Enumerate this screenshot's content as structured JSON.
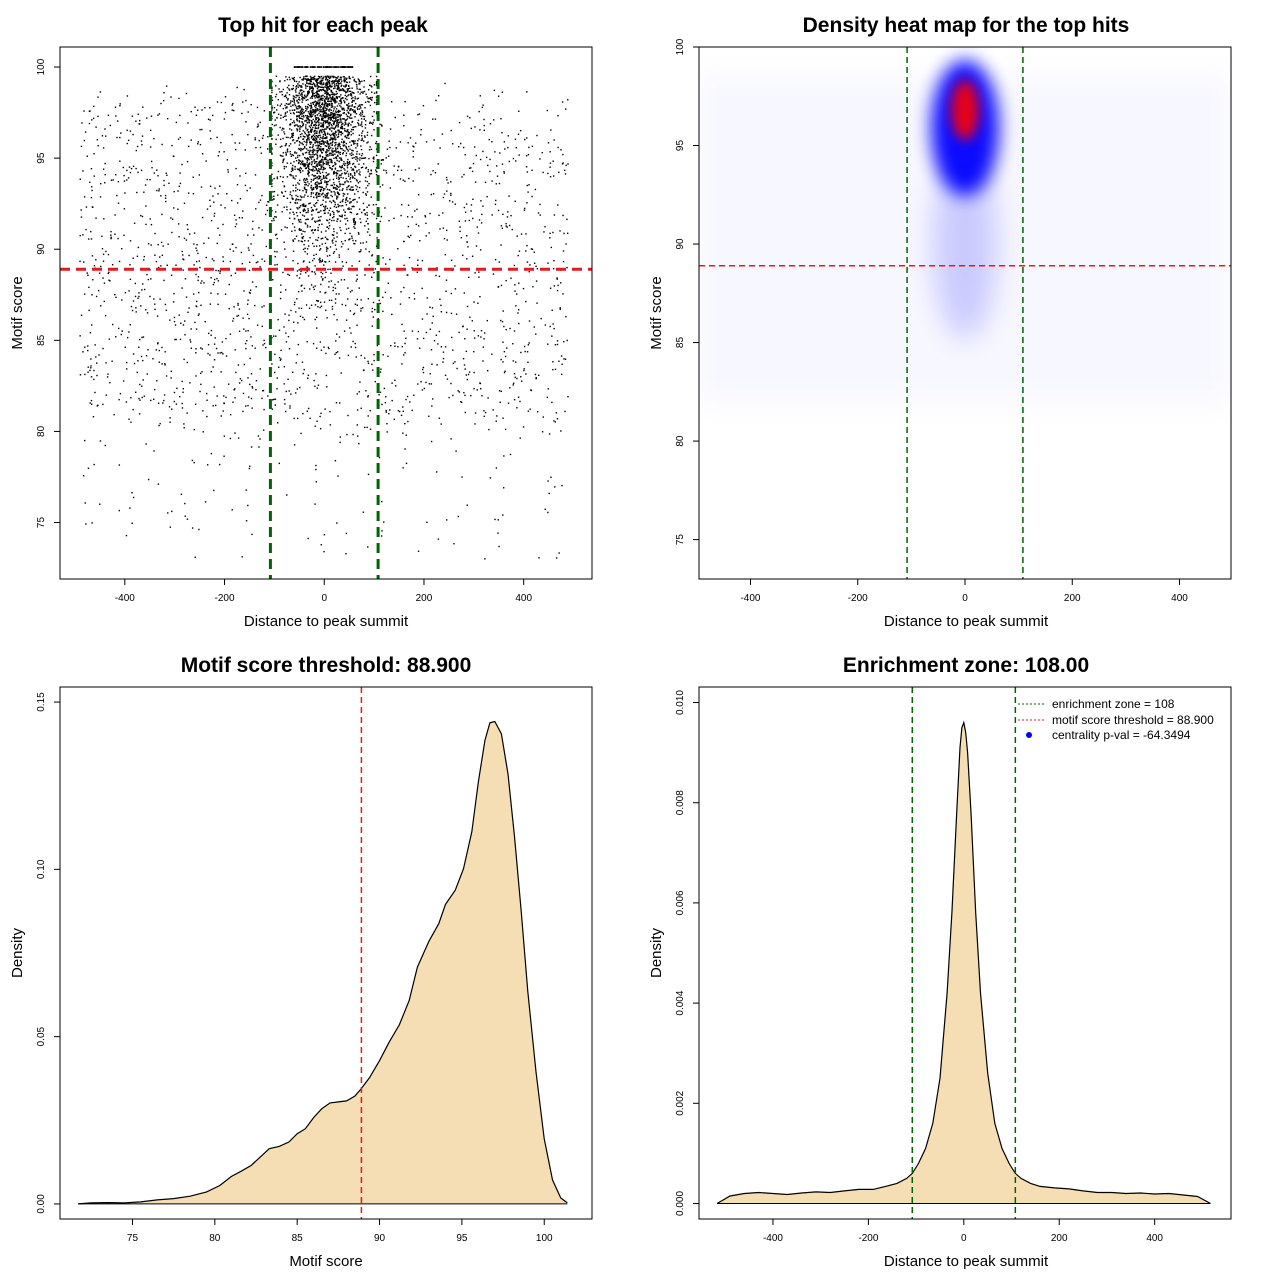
{
  "chart_data": [
    {
      "type": "scatter",
      "title": "Top hit for each peak",
      "xlabel": "Distance to peak summit",
      "ylabel": "Motif score",
      "xlim": [
        -530,
        537
      ],
      "ylim": [
        71.9,
        101.1
      ],
      "x_ticks": [
        -400,
        -200,
        0,
        200,
        400
      ],
      "y_ticks": [
        75,
        80,
        85,
        90,
        95,
        100
      ],
      "hlines": [
        {
          "y": 88.9,
          "color": "#e41a1c",
          "style": "dashed"
        }
      ],
      "vlines": [
        {
          "x": -108,
          "color": "#006400",
          "style": "dashed"
        },
        {
          "x": 108,
          "color": "#006400",
          "style": "dashed"
        }
      ],
      "point_color": "#000000"
    },
    {
      "type": "heatmap",
      "title": "Density heat map for the top hits",
      "xlabel": "Distance to peak summit",
      "ylabel": "Motif score",
      "xlim": [
        -496,
        496
      ],
      "ylim": [
        73,
        100
      ],
      "x_ticks": [
        -400,
        -200,
        0,
        200,
        400
      ],
      "y_ticks": [
        75,
        80,
        85,
        90,
        95,
        100
      ],
      "peak": {
        "x": 0,
        "y": 96.8
      },
      "hlines": [
        {
          "y": 88.9,
          "color": "#e41a1c",
          "style": "dashed"
        }
      ],
      "vlines": [
        {
          "x": -108,
          "color": "#006400",
          "style": "dashed"
        },
        {
          "x": 108,
          "color": "#006400",
          "style": "dashed"
        }
      ],
      "colors": [
        "#ffffff",
        "#0000ff",
        "#ff0000"
      ]
    },
    {
      "type": "area",
      "title": "Motif score threshold: 88.900",
      "xlabel": "Motif score",
      "ylabel": "Density",
      "xlim": [
        70.6,
        102.9
      ],
      "ylim": [
        -0.0045,
        0.1545
      ],
      "x_ticks": [
        75,
        80,
        85,
        90,
        95,
        100
      ],
      "y_ticks": [
        0.0,
        0.05,
        0.1,
        0.15
      ],
      "y_tick_labels": [
        "0.00",
        "0.05",
        "0.10",
        "0.15"
      ],
      "fill": "#f5deb3",
      "vlines": [
        {
          "x": 88.9,
          "color": "#e41a1c",
          "style": "dashed"
        }
      ],
      "x": [
        71.7,
        72.5,
        73.5,
        74.5,
        75.5,
        76.5,
        77.5,
        78.5,
        79.5,
        80.3,
        81,
        81.6,
        82.2,
        82.8,
        83.3,
        83.9,
        84.5,
        85,
        85.5,
        86,
        86.5,
        87,
        87.5,
        88,
        88.5,
        88.9,
        89.4,
        90,
        90.6,
        91.2,
        91.8,
        92.3,
        93,
        93.6,
        94,
        94.6,
        95.1,
        95.6,
        96,
        96.4,
        96.7,
        97,
        97.4,
        97.8,
        98.2,
        98.6,
        99,
        99.5,
        100,
        100.5,
        101,
        101.4
      ],
      "y": [
        0.0,
        0.0003,
        0.0004,
        0.0003,
        0.0006,
        0.0012,
        0.0016,
        0.0023,
        0.0036,
        0.0055,
        0.0082,
        0.0098,
        0.0115,
        0.0142,
        0.0165,
        0.0172,
        0.0185,
        0.021,
        0.0225,
        0.0258,
        0.0285,
        0.0302,
        0.0305,
        0.0308,
        0.0322,
        0.0345,
        0.0378,
        0.0428,
        0.0485,
        0.0535,
        0.0608,
        0.0708,
        0.0785,
        0.0838,
        0.0895,
        0.0938,
        0.1002,
        0.1112,
        0.1262,
        0.1385,
        0.1438,
        0.1442,
        0.1405,
        0.1285,
        0.1095,
        0.0875,
        0.0635,
        0.0395,
        0.0195,
        0.0072,
        0.0018,
        0.0003
      ]
    },
    {
      "type": "area",
      "title": "Enrichment zone: 108.00",
      "xlabel": "Distance to peak summit",
      "ylabel": "Density",
      "xlim": [
        -555,
        560
      ],
      "ylim": [
        -0.00031,
        0.01031
      ],
      "x_ticks": [
        -400,
        -200,
        0,
        200,
        400
      ],
      "y_ticks": [
        0.0,
        0.002,
        0.004,
        0.006,
        0.008,
        0.01
      ],
      "y_tick_labels": [
        "0.000",
        "0.002",
        "0.004",
        "0.006",
        "0.008",
        "0.010"
      ],
      "fill": "#f5deb3",
      "vlines": [
        {
          "x": -108,
          "color": "#006400",
          "style": "dashed"
        },
        {
          "x": 108,
          "color": "#006400",
          "style": "dashed"
        }
      ],
      "x": [
        -517,
        -490,
        -460,
        -430,
        -400,
        -370,
        -340,
        -310,
        -280,
        -250,
        -220,
        -190,
        -160,
        -140,
        -120,
        -108,
        -95,
        -80,
        -65,
        -50,
        -35,
        -25,
        -15,
        -8,
        -4,
        0,
        4,
        8,
        15,
        25,
        35,
        50,
        65,
        80,
        95,
        108,
        120,
        140,
        160,
        190,
        220,
        250,
        280,
        310,
        340,
        370,
        400,
        430,
        460,
        490,
        517
      ],
      "y": [
        0.0,
        0.00015,
        0.0002,
        0.00022,
        0.0002,
        0.00018,
        0.00021,
        0.00023,
        0.00022,
        0.00025,
        0.00028,
        0.00028,
        0.00035,
        0.0004,
        0.0005,
        0.0006,
        0.0008,
        0.0011,
        0.0016,
        0.0025,
        0.0042,
        0.0058,
        0.0078,
        0.0091,
        0.0095,
        0.0096,
        0.0094,
        0.009,
        0.0078,
        0.0058,
        0.0042,
        0.0026,
        0.0016,
        0.0011,
        0.0008,
        0.0006,
        0.0005,
        0.0004,
        0.00034,
        0.00031,
        0.00029,
        0.00025,
        0.00022,
        0.00022,
        0.0002,
        0.00021,
        0.00019,
        0.0002,
        0.00017,
        0.00014,
        0.0
      ],
      "legend": {
        "placement": "top-right",
        "entries": [
          {
            "label": "enrichment zone = 108",
            "color": "#006400",
            "symbol": "dotted-line"
          },
          {
            "label": "motif score threshold = 88.900",
            "color": "#e41a1c",
            "symbol": "dotted-line"
          },
          {
            "label": "centrality p-val = -64.3494",
            "color": "#0000ff",
            "symbol": "point"
          }
        ]
      }
    }
  ]
}
